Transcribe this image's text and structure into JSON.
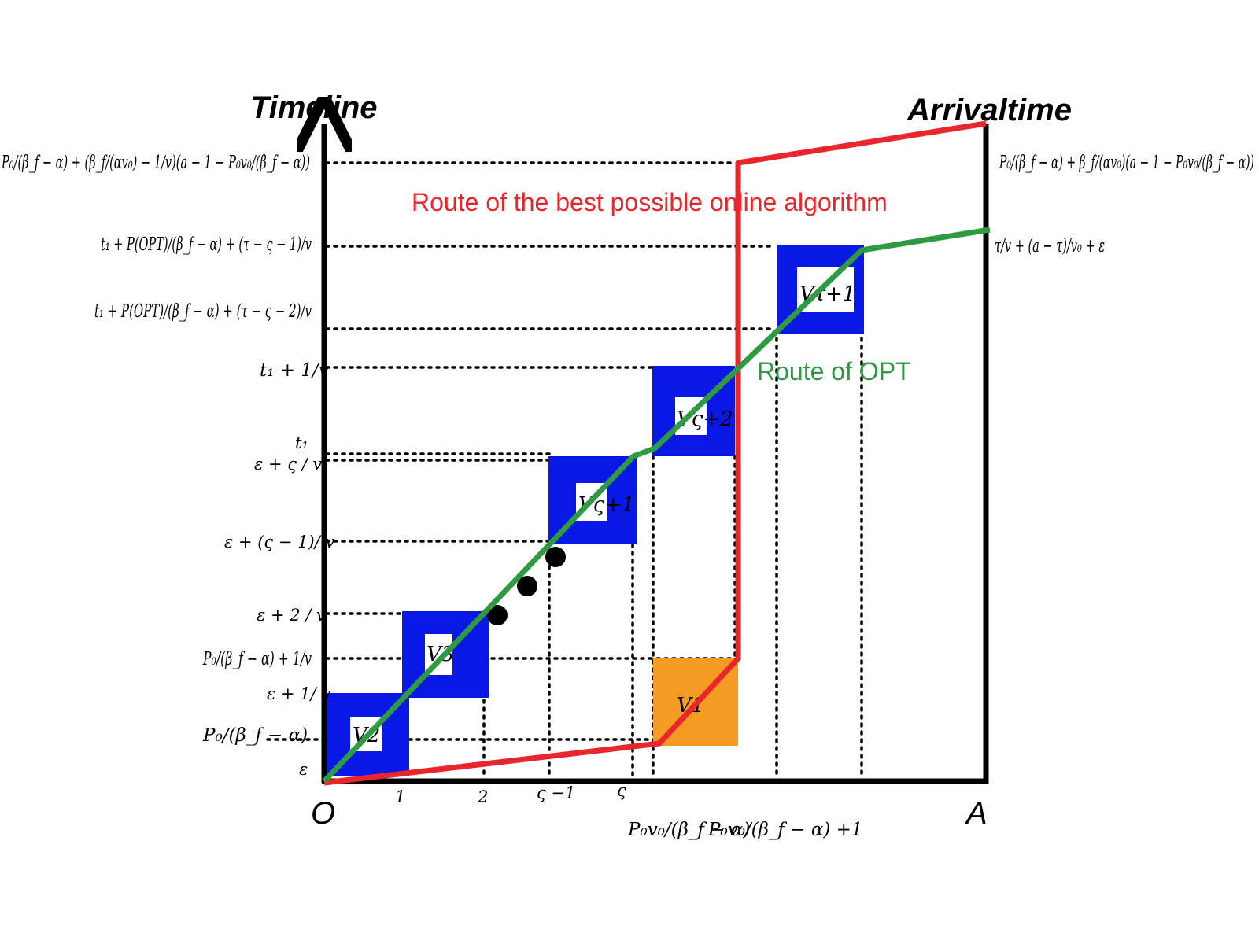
{
  "titles": {
    "y_axis": "Timeline",
    "right_axis": "Arrivaltime"
  },
  "axis_letters": {
    "origin": "O",
    "end": "A"
  },
  "route_labels": {
    "online": "Route of the best possible online algorithm",
    "opt": "Route of OPT"
  },
  "y_labels": {
    "top_left": "P₀/(β_f − α) + (β_f/(αv₀) − 1/v)(a − 1 − P₀v₀/(β_f − α))",
    "opt_1": "t₁ + P(OPT)/(β_f − α) + (τ − ς − 1)/v",
    "opt_2": "t₁ + P(OPT)/(β_f − α) + (τ − ς − 2)/v",
    "t1_plus": "t₁ + 1/v",
    "t1": "t₁",
    "eps_s": "ε + ς / v",
    "eps_s1": "ε + (ς − 1)/ v",
    "eps_2": "ε + 2 / v",
    "p0_plus": "P₀/(β_f − α) + 1/v",
    "eps_1": "ε + 1/ v",
    "p0": "P₀/(β_f − α)",
    "eps": "ε"
  },
  "right_labels": {
    "top": "P₀/(β_f − α) + β_f/(αv₀)(a − 1 − P₀v₀/(β_f − α))",
    "opt_end": "τ/v + (a − τ)/v₀ + ε"
  },
  "x_labels": {
    "one": "1",
    "two": "2",
    "s_minus_1": "ς −1",
    "s": "ς",
    "p0v0": "P₀v₀/(β_f − α)",
    "p0v0_plus": "P₀v₀/(β_f − α) +1"
  },
  "boxes": {
    "v2": "V2",
    "v3": "V3",
    "vs1": "Vς+1",
    "vs2": "Vς+2",
    "vt1": "Vτ+1",
    "v1": "V1"
  },
  "colors": {
    "box_blue": "#0a18e6",
    "box_orange": "#f59a22",
    "route_red": "#e8262b",
    "route_green": "#2e9a42"
  }
}
